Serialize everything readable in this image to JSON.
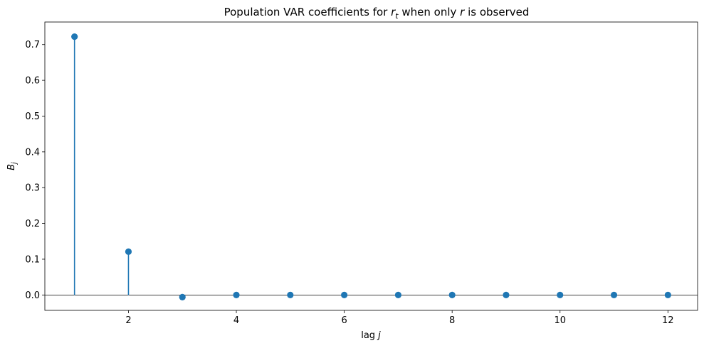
{
  "chart_data": {
    "type": "stem",
    "title_parts": {
      "pre": "Population VAR coefficients for ",
      "var1": "r",
      "var1_sub": "t",
      "mid": " when only ",
      "var2": "r",
      "post": " is observed"
    },
    "xlabel": {
      "pre": "lag ",
      "var": "j"
    },
    "ylabel": {
      "var": "B",
      "sub": "j"
    },
    "x": [
      1,
      2,
      3,
      4,
      5,
      6,
      7,
      8,
      9,
      10,
      11,
      12
    ],
    "values": [
      0.722,
      0.121,
      -0.006,
      0.0,
      0.0,
      0.0,
      0.0,
      0.0,
      0.0,
      0.0,
      0.0,
      0.0
    ],
    "xlim": [
      0.45,
      12.55
    ],
    "ylim": [
      -0.043,
      0.763
    ],
    "xticks": [
      2,
      4,
      6,
      8,
      10,
      12
    ],
    "xtick_labels": [
      "2",
      "4",
      "6",
      "8",
      "10",
      "12"
    ],
    "yticks": [
      0.0,
      0.1,
      0.2,
      0.3,
      0.4,
      0.5,
      0.6,
      0.7
    ],
    "ytick_labels": [
      "0.0",
      "0.1",
      "0.2",
      "0.3",
      "0.4",
      "0.5",
      "0.6",
      "0.7"
    ],
    "baseline": 0,
    "grid": false,
    "colors": {
      "stem": "#1f77b4",
      "baseline": "#000000"
    }
  }
}
